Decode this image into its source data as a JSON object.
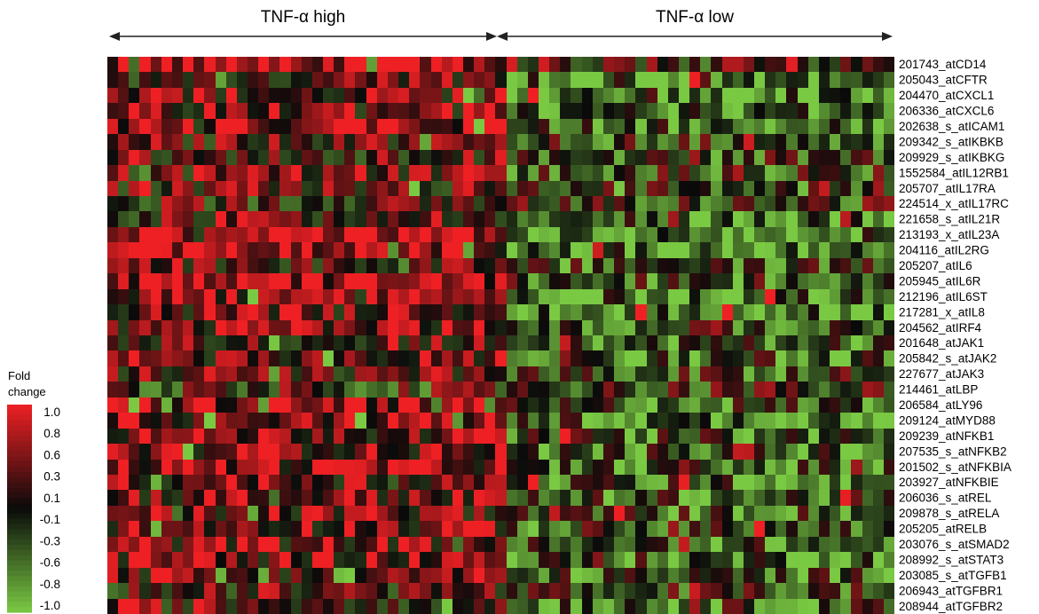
{
  "chart_data": {
    "type": "heatmap",
    "groups": [
      {
        "label": "TNF-α high"
      },
      {
        "label": "TNF-α low"
      }
    ],
    "n_columns": 73,
    "rows": [
      "201743_atCD14",
      "205043_atCFTR",
      "204470_atCXCL1",
      "206336_atCXCL6",
      "202638_s_atICAM1",
      "209342_s_atIKBKB",
      "209929_s_atIKBKG",
      "1552584_atIL12RB1",
      "205707_atIL17RA",
      "224514_x_atIL17RC",
      "221658_s_atIL21R",
      "213193_x_atIL23A",
      "204116_atIL2RG",
      "205207_atIL6",
      "205945_atIL6R",
      "212196_atIL6ST",
      "217281_x_atIL8",
      "204562_atIRF4",
      "201648_atJAK1",
      "205842_s_atJAK2",
      "227677_atJAK3",
      "214461_atLBP",
      "206584_atLY96",
      "209124_atMYD88",
      "209239_atNFKB1",
      "207535_s_atNFKB2",
      "201502_s_atNFKBIA",
      "203927_atNFKBIE",
      "206036_s_atREL",
      "209878_s_atRELA",
      "205205_atRELB",
      "203076_s_atSMAD2",
      "208992_s_atSTAT3",
      "203085_s_atTGFB1",
      "206943_atTGFBR1",
      "208944_atTGFBR2"
    ],
    "legend": {
      "title_line1": "Fold",
      "title_line2": "change",
      "ticks": [
        "1.0",
        "0.8",
        "0.6",
        "0.3",
        "0.1",
        "-0.1",
        "-0.3",
        "-0.6",
        "-0.8",
        "-1.0"
      ]
    },
    "colors": {
      "high": "#ee2024",
      "mid": "#0a0a0a",
      "low": "#7ac943"
    }
  }
}
